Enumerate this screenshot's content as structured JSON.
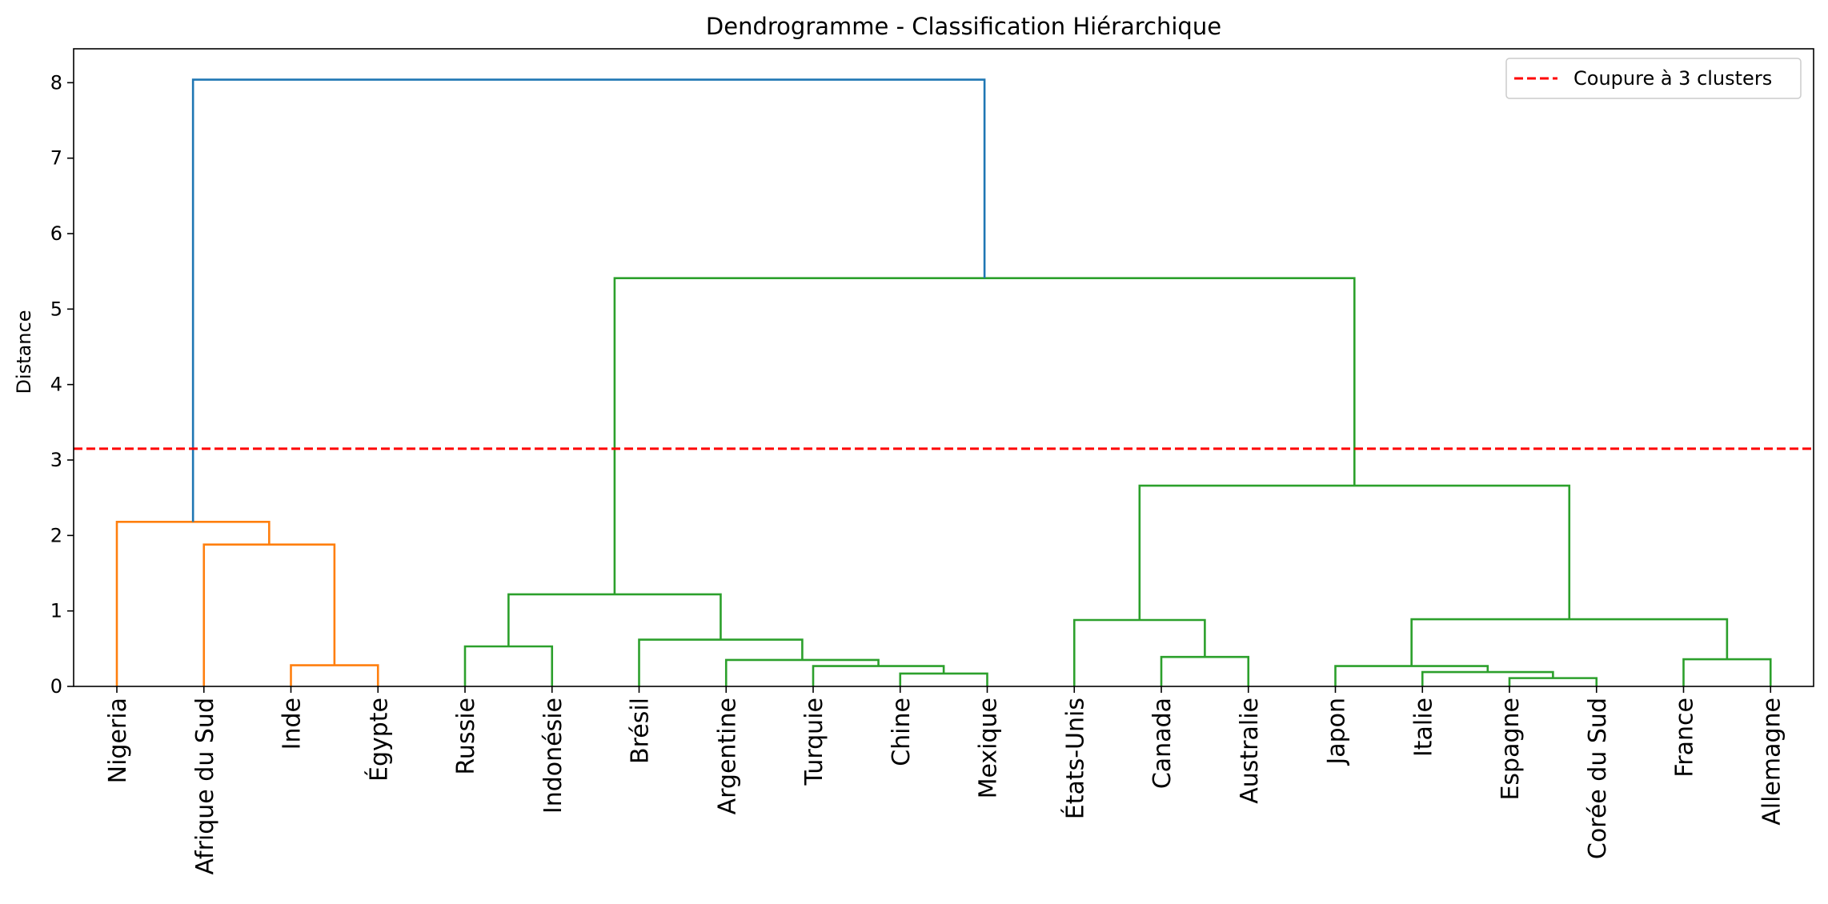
{
  "chart_data": {
    "type": "dendrogram",
    "title": "Dendrogramme - Classification Hiérarchique",
    "xlabel": "",
    "ylabel": "Distance",
    "ylim": [
      0,
      8.4
    ],
    "yticks": [
      0,
      1,
      2,
      3,
      4,
      5,
      6,
      7,
      8
    ],
    "grid": false,
    "legend": {
      "placement": "top-right",
      "entries": [
        {
          "label": "Coupure à 3 clusters",
          "color": "#ff0000",
          "style": "dashed"
        }
      ]
    },
    "cut_line": {
      "y": 3.15,
      "color": "#ff0000"
    },
    "colors": {
      "cluster_1": "#ff7f0e",
      "cluster_2": "#2ca02c",
      "above_cut": "#1f77b4"
    },
    "leaves": [
      "Nigeria",
      "Afrique du Sud",
      "Inde",
      "Égypte",
      "Russie",
      "Indonésie",
      "Brésil",
      "Argentine",
      "Turquie",
      "Chine",
      "Mexique",
      "États-Unis",
      "Canada",
      "Australie",
      "Japon",
      "Italie",
      "Espagne",
      "Corée du Sud",
      "France",
      "Allemagne"
    ],
    "merges": [
      {
        "left": 2,
        "right": 3,
        "height": 0.28,
        "color": "#ff7f0e"
      },
      {
        "left": 1,
        "right": 20,
        "height": 1.88,
        "color": "#ff7f0e"
      },
      {
        "left": 0,
        "right": 21,
        "height": 2.18,
        "color": "#ff7f0e"
      },
      {
        "left": 4,
        "right": 5,
        "height": 0.53,
        "color": "#2ca02c"
      },
      {
        "left": 9,
        "right": 10,
        "height": 0.17,
        "color": "#2ca02c"
      },
      {
        "left": 8,
        "right": 24,
        "height": 0.27,
        "color": "#2ca02c"
      },
      {
        "left": 7,
        "right": 25,
        "height": 0.35,
        "color": "#2ca02c"
      },
      {
        "left": 6,
        "right": 26,
        "height": 0.62,
        "color": "#2ca02c"
      },
      {
        "left": 23,
        "right": 27,
        "height": 1.22,
        "color": "#2ca02c"
      },
      {
        "left": 12,
        "right": 13,
        "height": 0.39,
        "color": "#2ca02c"
      },
      {
        "left": 11,
        "right": 29,
        "height": 0.88,
        "color": "#2ca02c"
      },
      {
        "left": 16,
        "right": 17,
        "height": 0.11,
        "color": "#2ca02c"
      },
      {
        "left": 15,
        "right": 31,
        "height": 0.19,
        "color": "#2ca02c"
      },
      {
        "left": 14,
        "right": 32,
        "height": 0.27,
        "color": "#2ca02c"
      },
      {
        "left": 18,
        "right": 19,
        "height": 0.36,
        "color": "#2ca02c"
      },
      {
        "left": 33,
        "right": 34,
        "height": 0.89,
        "color": "#2ca02c"
      },
      {
        "left": 30,
        "right": 35,
        "height": 2.66,
        "color": "#2ca02c"
      },
      {
        "left": 28,
        "right": 36,
        "height": 5.41,
        "color": "#2ca02c"
      },
      {
        "left": 22,
        "right": 37,
        "height": 8.04,
        "color": "#1f77b4"
      }
    ]
  }
}
